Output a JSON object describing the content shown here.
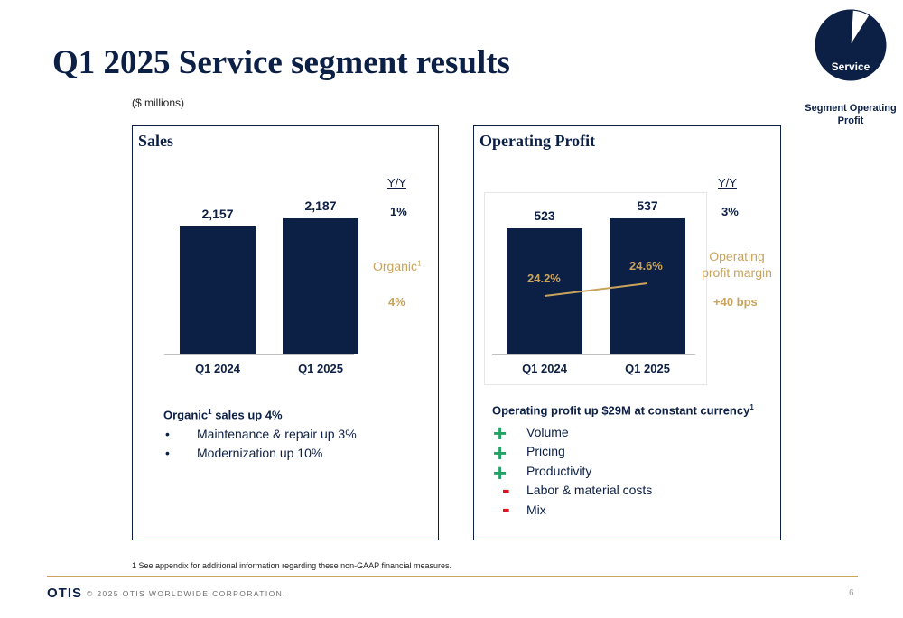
{
  "title": "Q1 2025 Service segment results",
  "units": "($ millions)",
  "pie": {
    "label": "Service",
    "caption_line1": "Segment Operating",
    "caption_line2": "Profit",
    "service_share": 0.92,
    "color_main": "#0c1f45"
  },
  "sales": {
    "title": "Sales",
    "yy_header": "Y/Y",
    "yy_value": "1%",
    "organic_label": "Organic",
    "organic_sup": "1",
    "organic_value": "4%",
    "bullets_head": "Organic",
    "bullets_head_sup": "1",
    "bullets_head_rest": " sales up 4%",
    "bullets": [
      {
        "mark": "•",
        "text": "Maintenance & repair up 3%"
      },
      {
        "mark": "•",
        "text": "Modernization up 10%"
      }
    ]
  },
  "op_profit": {
    "title": "Operating Profit",
    "yy_header": "Y/Y",
    "yy_value": "3%",
    "margin_label_1": "Operating",
    "margin_label_2": "profit margin",
    "margin_change": "+40 bps",
    "drivers_head": "Operating profit up $29M at constant currency",
    "drivers_head_sup": "1",
    "drivers": [
      {
        "sign": "+",
        "text": "Volume"
      },
      {
        "sign": "+",
        "text": "Pricing"
      },
      {
        "sign": "+",
        "text": "Productivity"
      },
      {
        "sign": "-",
        "text": "Labor & material costs"
      },
      {
        "sign": "-",
        "text": "Mix"
      }
    ]
  },
  "chart_data": [
    {
      "type": "bar",
      "title": "Sales",
      "categories": [
        "Q1 2024",
        "Q1 2025"
      ],
      "values": [
        2157,
        2187
      ],
      "value_labels": [
        "2,157",
        "2,187"
      ],
      "bar_color": "#0c1f45"
    },
    {
      "type": "bar",
      "title": "Operating Profit",
      "categories": [
        "Q1 2024",
        "Q1 2025"
      ],
      "values": [
        523,
        537
      ],
      "value_labels": [
        "523",
        "537"
      ],
      "bar_color": "#0c1f45",
      "line_series": {
        "values": [
          24.2,
          24.6
        ],
        "value_labels": [
          "24.2%",
          "24.6%"
        ],
        "color": "#c9a35c"
      }
    }
  ],
  "footnote": "1 See appendix for additional information regarding these non-GAAP financial measures.",
  "footer": {
    "logo": "OTIS",
    "copyright": "© 2025 OTIS WORLDWIDE CORPORATION.",
    "page": "6"
  }
}
